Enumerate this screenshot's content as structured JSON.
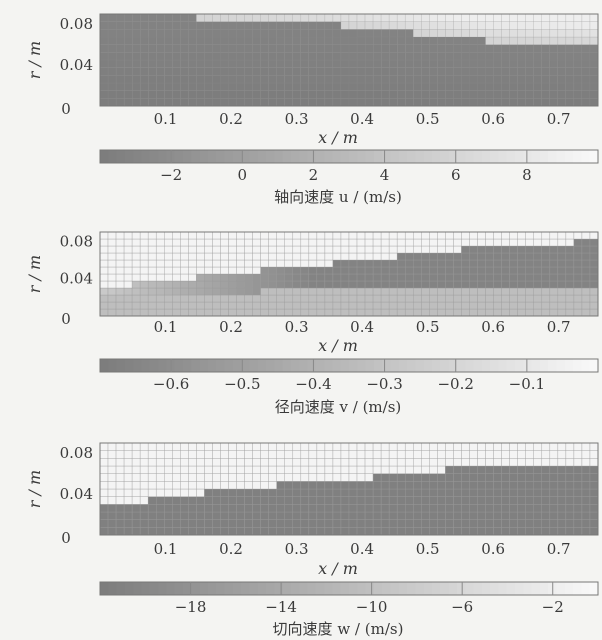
{
  "chart_data": [
    {
      "type": "heatmap",
      "xlabel": "x / m",
      "ylabel": "r / m",
      "xticks": [
        "0.1",
        "0.2",
        "0.3",
        "0.4",
        "0.5",
        "0.6",
        "0.7"
      ],
      "yticks": [
        "0",
        "0.04",
        "0.08"
      ],
      "xlim": [
        0,
        0.76
      ],
      "ylim": [
        0,
        0.09
      ],
      "colorbar": {
        "title": "轴向速度 u / (m/s)",
        "ticks": [
          "−2",
          "0",
          "2",
          "4",
          "6",
          "8"
        ],
        "range": [
          -4,
          10
        ]
      },
      "field": {
        "description": "axial velocity u, mostly negative (dark) near axis; higher (light) near outer wall downstream",
        "light_boundary_r": [
          [
            0,
            0.09
          ],
          [
            0.2,
            0.085
          ],
          [
            0.35,
            0.08
          ],
          [
            0.5,
            0.07
          ],
          [
            0.6,
            0.063
          ],
          [
            0.76,
            0.06
          ]
        ],
        "inner_value": -3,
        "outer_value": 4
      }
    },
    {
      "type": "heatmap",
      "xlabel": "x / m",
      "ylabel": "r / m",
      "xticks": [
        "0.1",
        "0.2",
        "0.3",
        "0.4",
        "0.5",
        "0.6",
        "0.7"
      ],
      "yticks": [
        "0",
        "0.04",
        "0.08"
      ],
      "xlim": [
        0,
        0.76
      ],
      "ylim": [
        0,
        0.09
      ],
      "colorbar": {
        "title": "径向速度 v / (m/s)",
        "ticks": [
          "−0.6",
          "−0.5",
          "−0.4",
          "−0.3",
          "−0.2",
          "−0.1"
        ],
        "range": [
          -0.7,
          0
        ]
      },
      "field": {
        "description": "radial velocity v, near zero (light) upstream and at wall, strongly negative (dark) band downstream",
        "dark_lower_r": [
          [
            0,
            0.02
          ],
          [
            0.2,
            0.025
          ],
          [
            0.4,
            0.03
          ],
          [
            0.76,
            0.03
          ]
        ],
        "dark_upper_r": [
          [
            0,
            0.03
          ],
          [
            0.2,
            0.045
          ],
          [
            0.4,
            0.06
          ],
          [
            0.6,
            0.075
          ],
          [
            0.76,
            0.08
          ]
        ],
        "inner_value": -0.6,
        "outer_value": -0.05
      }
    },
    {
      "type": "heatmap",
      "xlabel": "x / m",
      "ylabel": "r / m",
      "xticks": [
        "0.1",
        "0.2",
        "0.3",
        "0.4",
        "0.5",
        "0.6",
        "0.7"
      ],
      "yticks": [
        "0",
        "0.04",
        "0.08"
      ],
      "xlim": [
        0,
        0.76
      ],
      "ylim": [
        0,
        0.09
      ],
      "colorbar": {
        "title": "切向速度 w / (m/s)",
        "ticks": [
          "−18",
          "−14",
          "−10",
          "−6",
          "−2"
        ],
        "range": [
          -22,
          0
        ]
      },
      "field": {
        "description": "tangential velocity w, strongly negative (dark) near axis growing downstream; near zero (light) at outer wall",
        "dark_upper_r": [
          [
            0,
            0.03
          ],
          [
            0.1,
            0.035
          ],
          [
            0.2,
            0.045
          ],
          [
            0.3,
            0.05
          ],
          [
            0.4,
            0.055
          ],
          [
            0.5,
            0.062
          ],
          [
            0.6,
            0.068
          ],
          [
            0.76,
            0.07
          ]
        ],
        "inner_value": -18,
        "outer_value": -1
      }
    }
  ]
}
